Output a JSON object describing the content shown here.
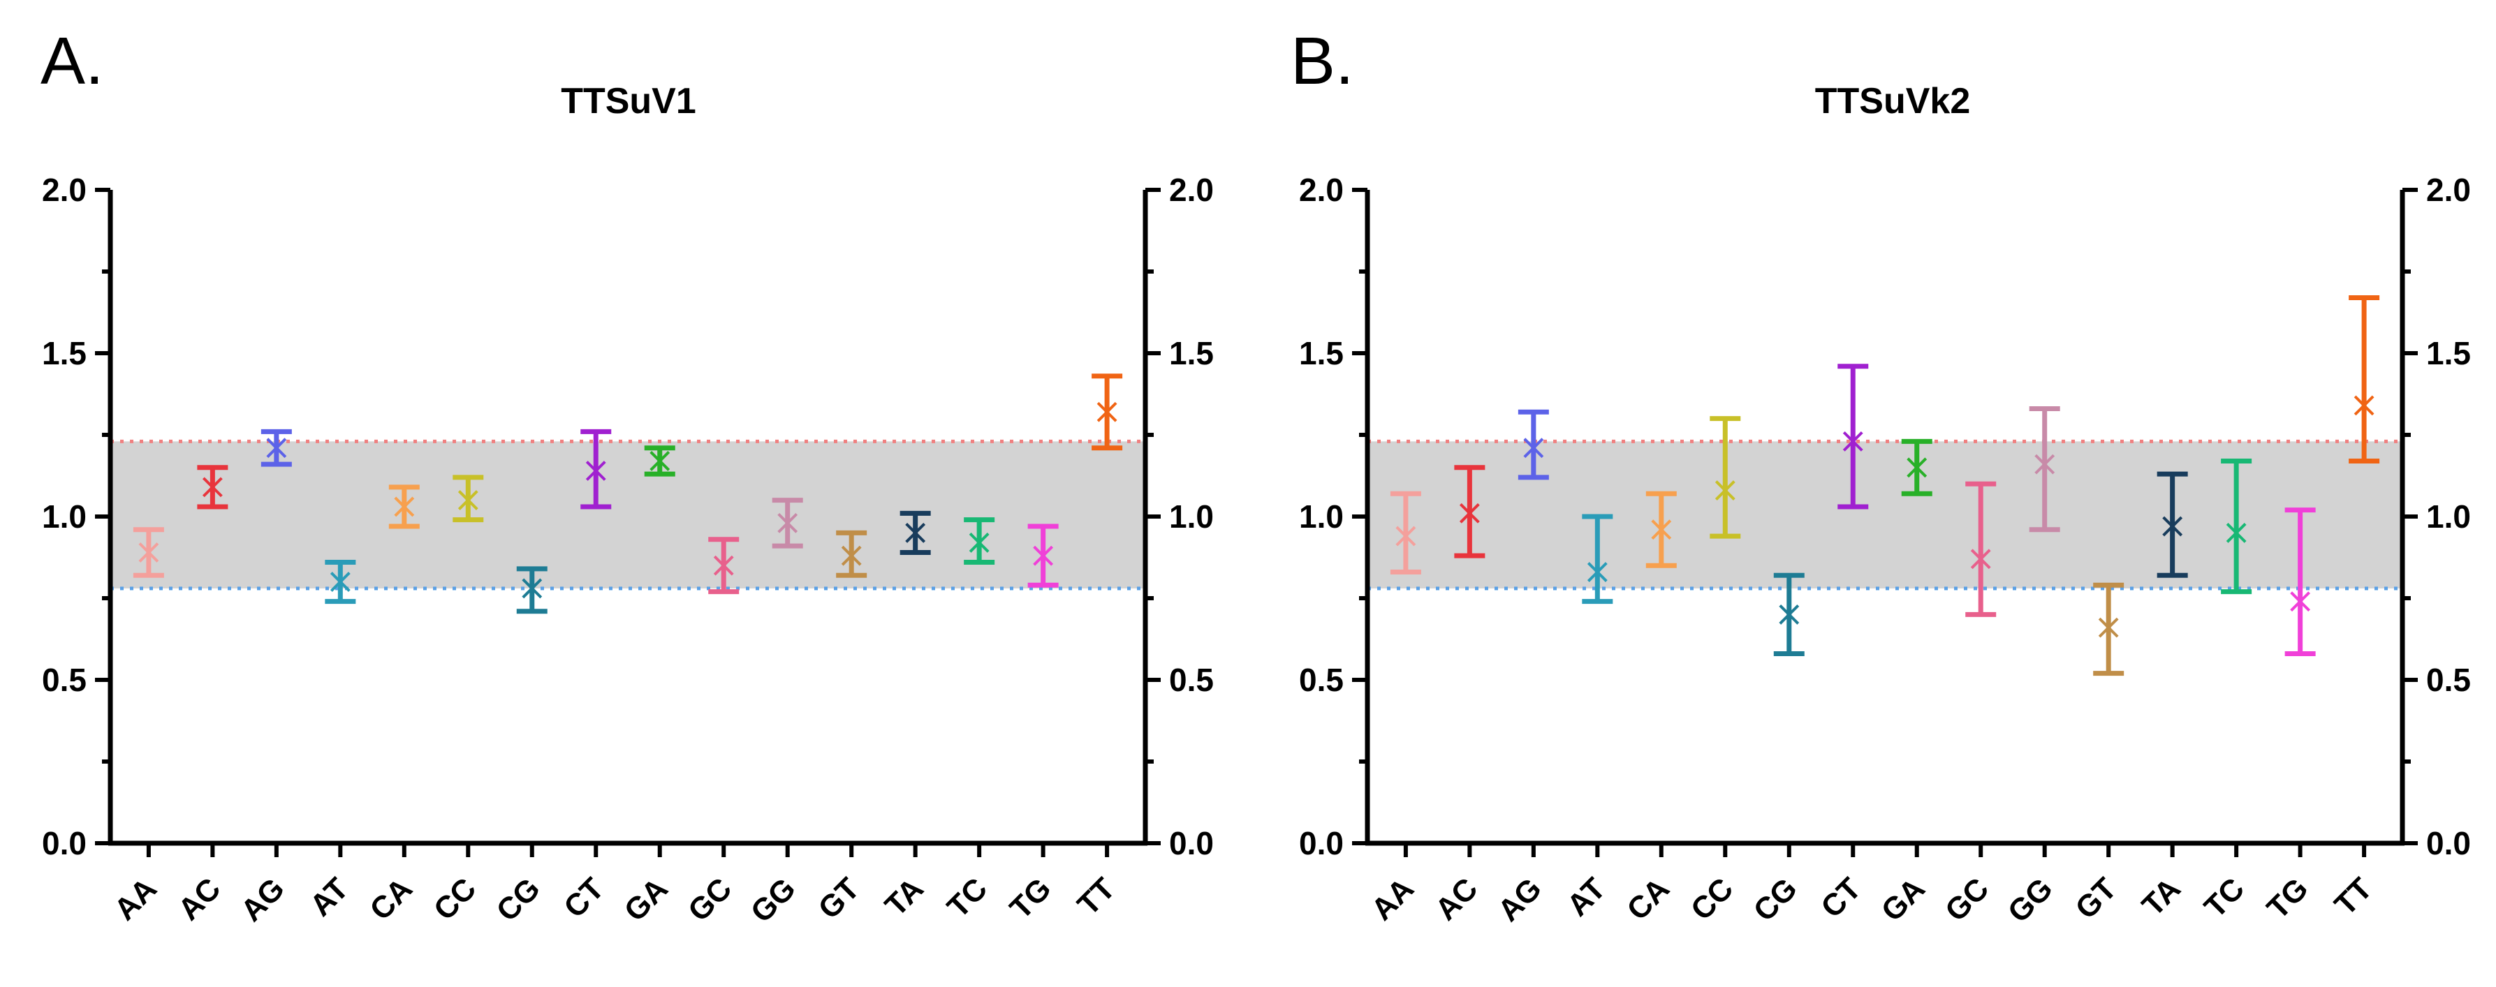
{
  "figure": {
    "panels": [
      {
        "letter": "A."
      },
      {
        "letter": "B."
      }
    ]
  },
  "chart_data": [
    {
      "type": "scatter",
      "title": "TTSuV1",
      "xlabel": "",
      "ylabel": "",
      "ylim": [
        0,
        2
      ],
      "yticks": [
        "0.0",
        "0.5",
        "1.0",
        "1.5",
        "2.0"
      ],
      "yticks_right": [
        "0.0",
        "0.5",
        "1.0",
        "1.5",
        "2.0"
      ],
      "band": {
        "low": 0.78,
        "high": 1.23,
        "fill": "#d3d3d3",
        "low_line_color": "#5aa0e6",
        "high_line_color": "#f08080"
      },
      "categories": [
        "AA",
        "AC",
        "AG",
        "AT",
        "CA",
        "CC",
        "CG",
        "CT",
        "GA",
        "GC",
        "GG",
        "GT",
        "TA",
        "TC",
        "TG",
        "TT"
      ],
      "values": [
        0.89,
        1.09,
        1.21,
        0.8,
        1.03,
        1.05,
        0.78,
        1.14,
        1.17,
        0.85,
        0.98,
        0.88,
        0.95,
        0.92,
        0.88,
        1.32
      ],
      "error_low": [
        0.82,
        1.03,
        1.16,
        0.74,
        0.97,
        0.99,
        0.71,
        1.03,
        1.13,
        0.77,
        0.91,
        0.82,
        0.89,
        0.86,
        0.79,
        1.21
      ],
      "error_high": [
        0.96,
        1.15,
        1.26,
        0.86,
        1.09,
        1.12,
        0.84,
        1.26,
        1.21,
        0.93,
        1.05,
        0.95,
        1.01,
        0.99,
        0.97,
        1.43
      ],
      "colors": [
        "#f4a09c",
        "#e8343c",
        "#5c62e8",
        "#2a9cb8",
        "#f7a04e",
        "#c8c028",
        "#1e7c94",
        "#a020d0",
        "#28b028",
        "#e8608c",
        "#c88aa8",
        "#c08e48",
        "#183c5c",
        "#18b874",
        "#f040d8",
        "#f06414"
      ]
    },
    {
      "type": "scatter",
      "title": "TTSuVk2",
      "xlabel": "",
      "ylabel": "",
      "ylim": [
        0,
        2
      ],
      "yticks": [
        "0.0",
        "0.5",
        "1.0",
        "1.5",
        "2.0"
      ],
      "yticks_right": [
        "0.0",
        "0.5",
        "1.0",
        "1.5",
        "2.0"
      ],
      "band": {
        "low": 0.78,
        "high": 1.23,
        "fill": "#d3d3d3",
        "low_line_color": "#5aa0e6",
        "high_line_color": "#f08080"
      },
      "categories": [
        "AA",
        "AC",
        "AG",
        "AT",
        "CA",
        "CC",
        "CG",
        "CT",
        "GA",
        "GC",
        "GG",
        "GT",
        "TA",
        "TC",
        "TG",
        "TT"
      ],
      "values": [
        0.94,
        1.01,
        1.21,
        0.83,
        0.96,
        1.08,
        0.7,
        1.23,
        1.15,
        0.87,
        1.16,
        0.66,
        0.97,
        0.95,
        0.74,
        1.34
      ],
      "error_low": [
        0.83,
        0.88,
        1.12,
        0.74,
        0.85,
        0.94,
        0.58,
        1.03,
        1.07,
        0.7,
        0.96,
        0.52,
        0.82,
        0.77,
        0.58,
        1.17
      ],
      "error_high": [
        1.07,
        1.15,
        1.32,
        1.0,
        1.07,
        1.3,
        0.82,
        1.46,
        1.23,
        1.1,
        1.33,
        0.79,
        1.13,
        1.17,
        1.02,
        1.67
      ],
      "colors": [
        "#f4a09c",
        "#e8343c",
        "#5c62e8",
        "#2a9cb8",
        "#f7a04e",
        "#c8c028",
        "#1e7c94",
        "#a020d0",
        "#28b028",
        "#e8608c",
        "#c88aa8",
        "#c08e48",
        "#183c5c",
        "#18b874",
        "#f040d8",
        "#f06414"
      ]
    }
  ]
}
